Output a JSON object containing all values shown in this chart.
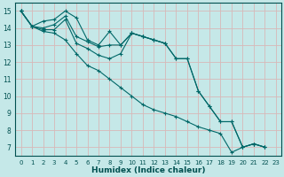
{
  "xlabel": "Humidex (Indice chaleur)",
  "ylabel": "",
  "bg_color": "#c5e8e8",
  "line_color": "#006868",
  "grid_color": "#d8b8b8",
  "tick_color": "#005050",
  "xlim": [
    -0.5,
    23.5
  ],
  "ylim": [
    6.5,
    15.5
  ],
  "yticks": [
    7,
    8,
    9,
    10,
    11,
    12,
    13,
    14,
    15
  ],
  "xticks": [
    0,
    1,
    2,
    3,
    4,
    5,
    6,
    7,
    8,
    9,
    10,
    11,
    12,
    13,
    14,
    15,
    16,
    17,
    18,
    19,
    20,
    21,
    22,
    23
  ],
  "series": [
    [
      15.0,
      14.1,
      14.4,
      14.5,
      15.0,
      14.6,
      13.3,
      13.0,
      13.8,
      13.0,
      13.7,
      13.5,
      13.3,
      13.1,
      null,
      null,
      null,
      null,
      null,
      null,
      null,
      null,
      null,
      null
    ],
    [
      15.0,
      14.1,
      14.0,
      14.2,
      14.7,
      13.5,
      13.2,
      12.9,
      13.0,
      13.0,
      13.7,
      13.5,
      13.3,
      13.1,
      12.2,
      12.2,
      10.3,
      9.4,
      8.5,
      8.5,
      7.0,
      7.2,
      7.0,
      null
    ],
    [
      15.0,
      14.1,
      13.9,
      13.9,
      14.5,
      13.1,
      12.8,
      12.4,
      12.2,
      12.5,
      13.7,
      13.5,
      13.3,
      13.1,
      12.2,
      12.2,
      10.3,
      9.4,
      8.5,
      8.5,
      7.0,
      7.2,
      7.0,
      null
    ],
    [
      15.0,
      14.1,
      13.8,
      13.7,
      13.3,
      12.5,
      11.8,
      11.5,
      11.0,
      10.5,
      10.0,
      9.5,
      9.2,
      9.0,
      8.8,
      8.5,
      8.2,
      8.0,
      7.8,
      6.7,
      7.0,
      7.2,
      7.0,
      null
    ]
  ]
}
